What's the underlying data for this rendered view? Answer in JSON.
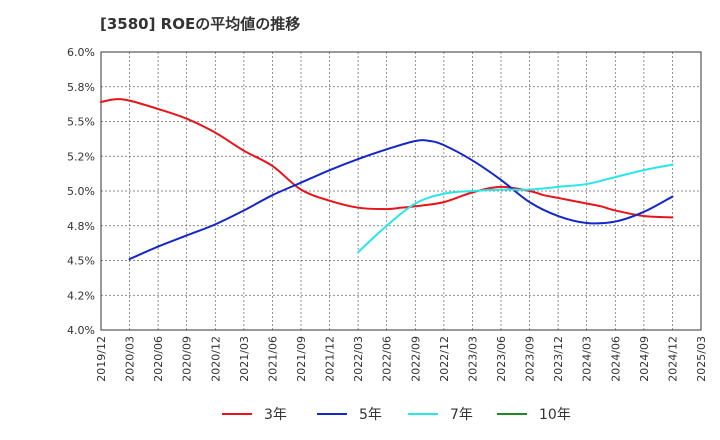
{
  "chart_data": {
    "type": "line",
    "title": "[3580]  ROEの平均値の推移",
    "xlabel": "",
    "ylabel": "",
    "ylim": [
      4.0,
      6.0
    ],
    "y_ticks": [
      "4.0%",
      "4.2%",
      "4.5%",
      "4.8%",
      "5.0%",
      "5.2%",
      "5.5%",
      "5.8%",
      "6.0%"
    ],
    "y_tick_values": [
      4.0,
      4.25,
      4.5,
      4.75,
      5.0,
      5.25,
      5.5,
      5.75,
      6.0
    ],
    "x_ticks": [
      "2019/12",
      "2020/03",
      "2020/06",
      "2020/09",
      "2020/12",
      "2021/03",
      "2021/06",
      "2021/09",
      "2021/12",
      "2022/03",
      "2022/06",
      "2022/09",
      "2022/12",
      "2023/03",
      "2023/06",
      "2023/09",
      "2023/12",
      "2024/03",
      "2024/06",
      "2024/09",
      "2024/12",
      "2025/03"
    ],
    "grid": true,
    "legend_position": "bottom",
    "series": [
      {
        "name": "3年",
        "color": "#e8141a",
        "x": [
          0,
          0.5,
          1,
          2,
          3,
          4,
          5,
          6,
          7,
          8,
          9,
          10,
          10.5,
          11,
          12,
          13,
          14,
          15,
          15.5,
          16,
          17,
          17.5,
          18,
          19,
          20
        ],
        "values": [
          5.64,
          5.66,
          5.65,
          5.59,
          5.52,
          5.42,
          5.29,
          5.18,
          5.01,
          4.93,
          4.88,
          4.87,
          4.88,
          4.89,
          4.92,
          4.99,
          5.03,
          5.0,
          4.97,
          4.95,
          4.91,
          4.89,
          4.86,
          4.82,
          4.81
        ]
      },
      {
        "name": "5年",
        "color": "#1428c8",
        "x": [
          1,
          2,
          3,
          4,
          5,
          6,
          7,
          8,
          9,
          10,
          11,
          11.5,
          12,
          13,
          14,
          15,
          16,
          17,
          18,
          19,
          20
        ],
        "values": [
          4.51,
          4.6,
          4.68,
          4.76,
          4.86,
          4.97,
          5.06,
          5.15,
          5.23,
          5.3,
          5.36,
          5.36,
          5.33,
          5.22,
          5.08,
          4.92,
          4.82,
          4.77,
          4.78,
          4.85,
          4.96
        ]
      },
      {
        "name": "7年",
        "color": "#28e6ea",
        "x": [
          9,
          10,
          11,
          12,
          13,
          14,
          15,
          16,
          17,
          18,
          19,
          20
        ],
        "values": [
          4.56,
          4.75,
          4.91,
          4.98,
          5.0,
          5.01,
          5.01,
          5.03,
          5.05,
          5.1,
          5.15,
          5.19
        ]
      },
      {
        "name": "10年",
        "color": "#1f8a1f",
        "x": [],
        "values": []
      }
    ]
  }
}
